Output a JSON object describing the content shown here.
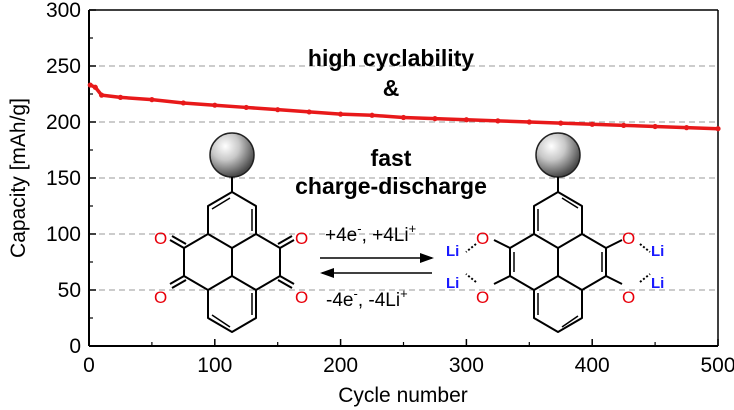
{
  "chart_data": {
    "type": "line",
    "title": "",
    "xlabel": "Cycle number",
    "ylabel": "Capacity [mAh/g]",
    "xlim": [
      0,
      500
    ],
    "ylim": [
      0,
      300
    ],
    "x_ticks": [
      0,
      100,
      200,
      300,
      400,
      500
    ],
    "y_ticks": [
      0,
      50,
      100,
      150,
      200,
      250,
      300
    ],
    "x_tick_labels": [
      "0",
      "100",
      "200",
      "300",
      "400",
      "500"
    ],
    "y_tick_labels": [
      "0",
      "50",
      "100",
      "150",
      "200",
      "250",
      "300"
    ],
    "grid": "horizontal dashed",
    "series": [
      {
        "color": "#e8191a",
        "x": [
          1,
          5,
          10,
          25,
          50,
          75,
          100,
          125,
          150,
          175,
          200,
          225,
          250,
          275,
          300,
          325,
          350,
          375,
          400,
          425,
          450,
          475,
          500
        ],
        "y": [
          233,
          231,
          224,
          222,
          220,
          217,
          215,
          213,
          211,
          209,
          207,
          206,
          204,
          203,
          202,
          201,
          200,
          199,
          198,
          197,
          196,
          195,
          194
        ]
      }
    ],
    "annotations": {
      "line1": "high cyclability",
      "line2": "&",
      "line3": "fast",
      "line4": "charge-discharge"
    },
    "reaction": {
      "forward": "+4e",
      "forward_sup1": "-",
      "forward_mid": ", +4Li",
      "forward_sup2": "+",
      "reverse": "-4e",
      "reverse_sup1": "-",
      "reverse_mid": ", -4Li",
      "reverse_sup2": "+",
      "oxygen": "O",
      "lithium": "Li"
    }
  }
}
